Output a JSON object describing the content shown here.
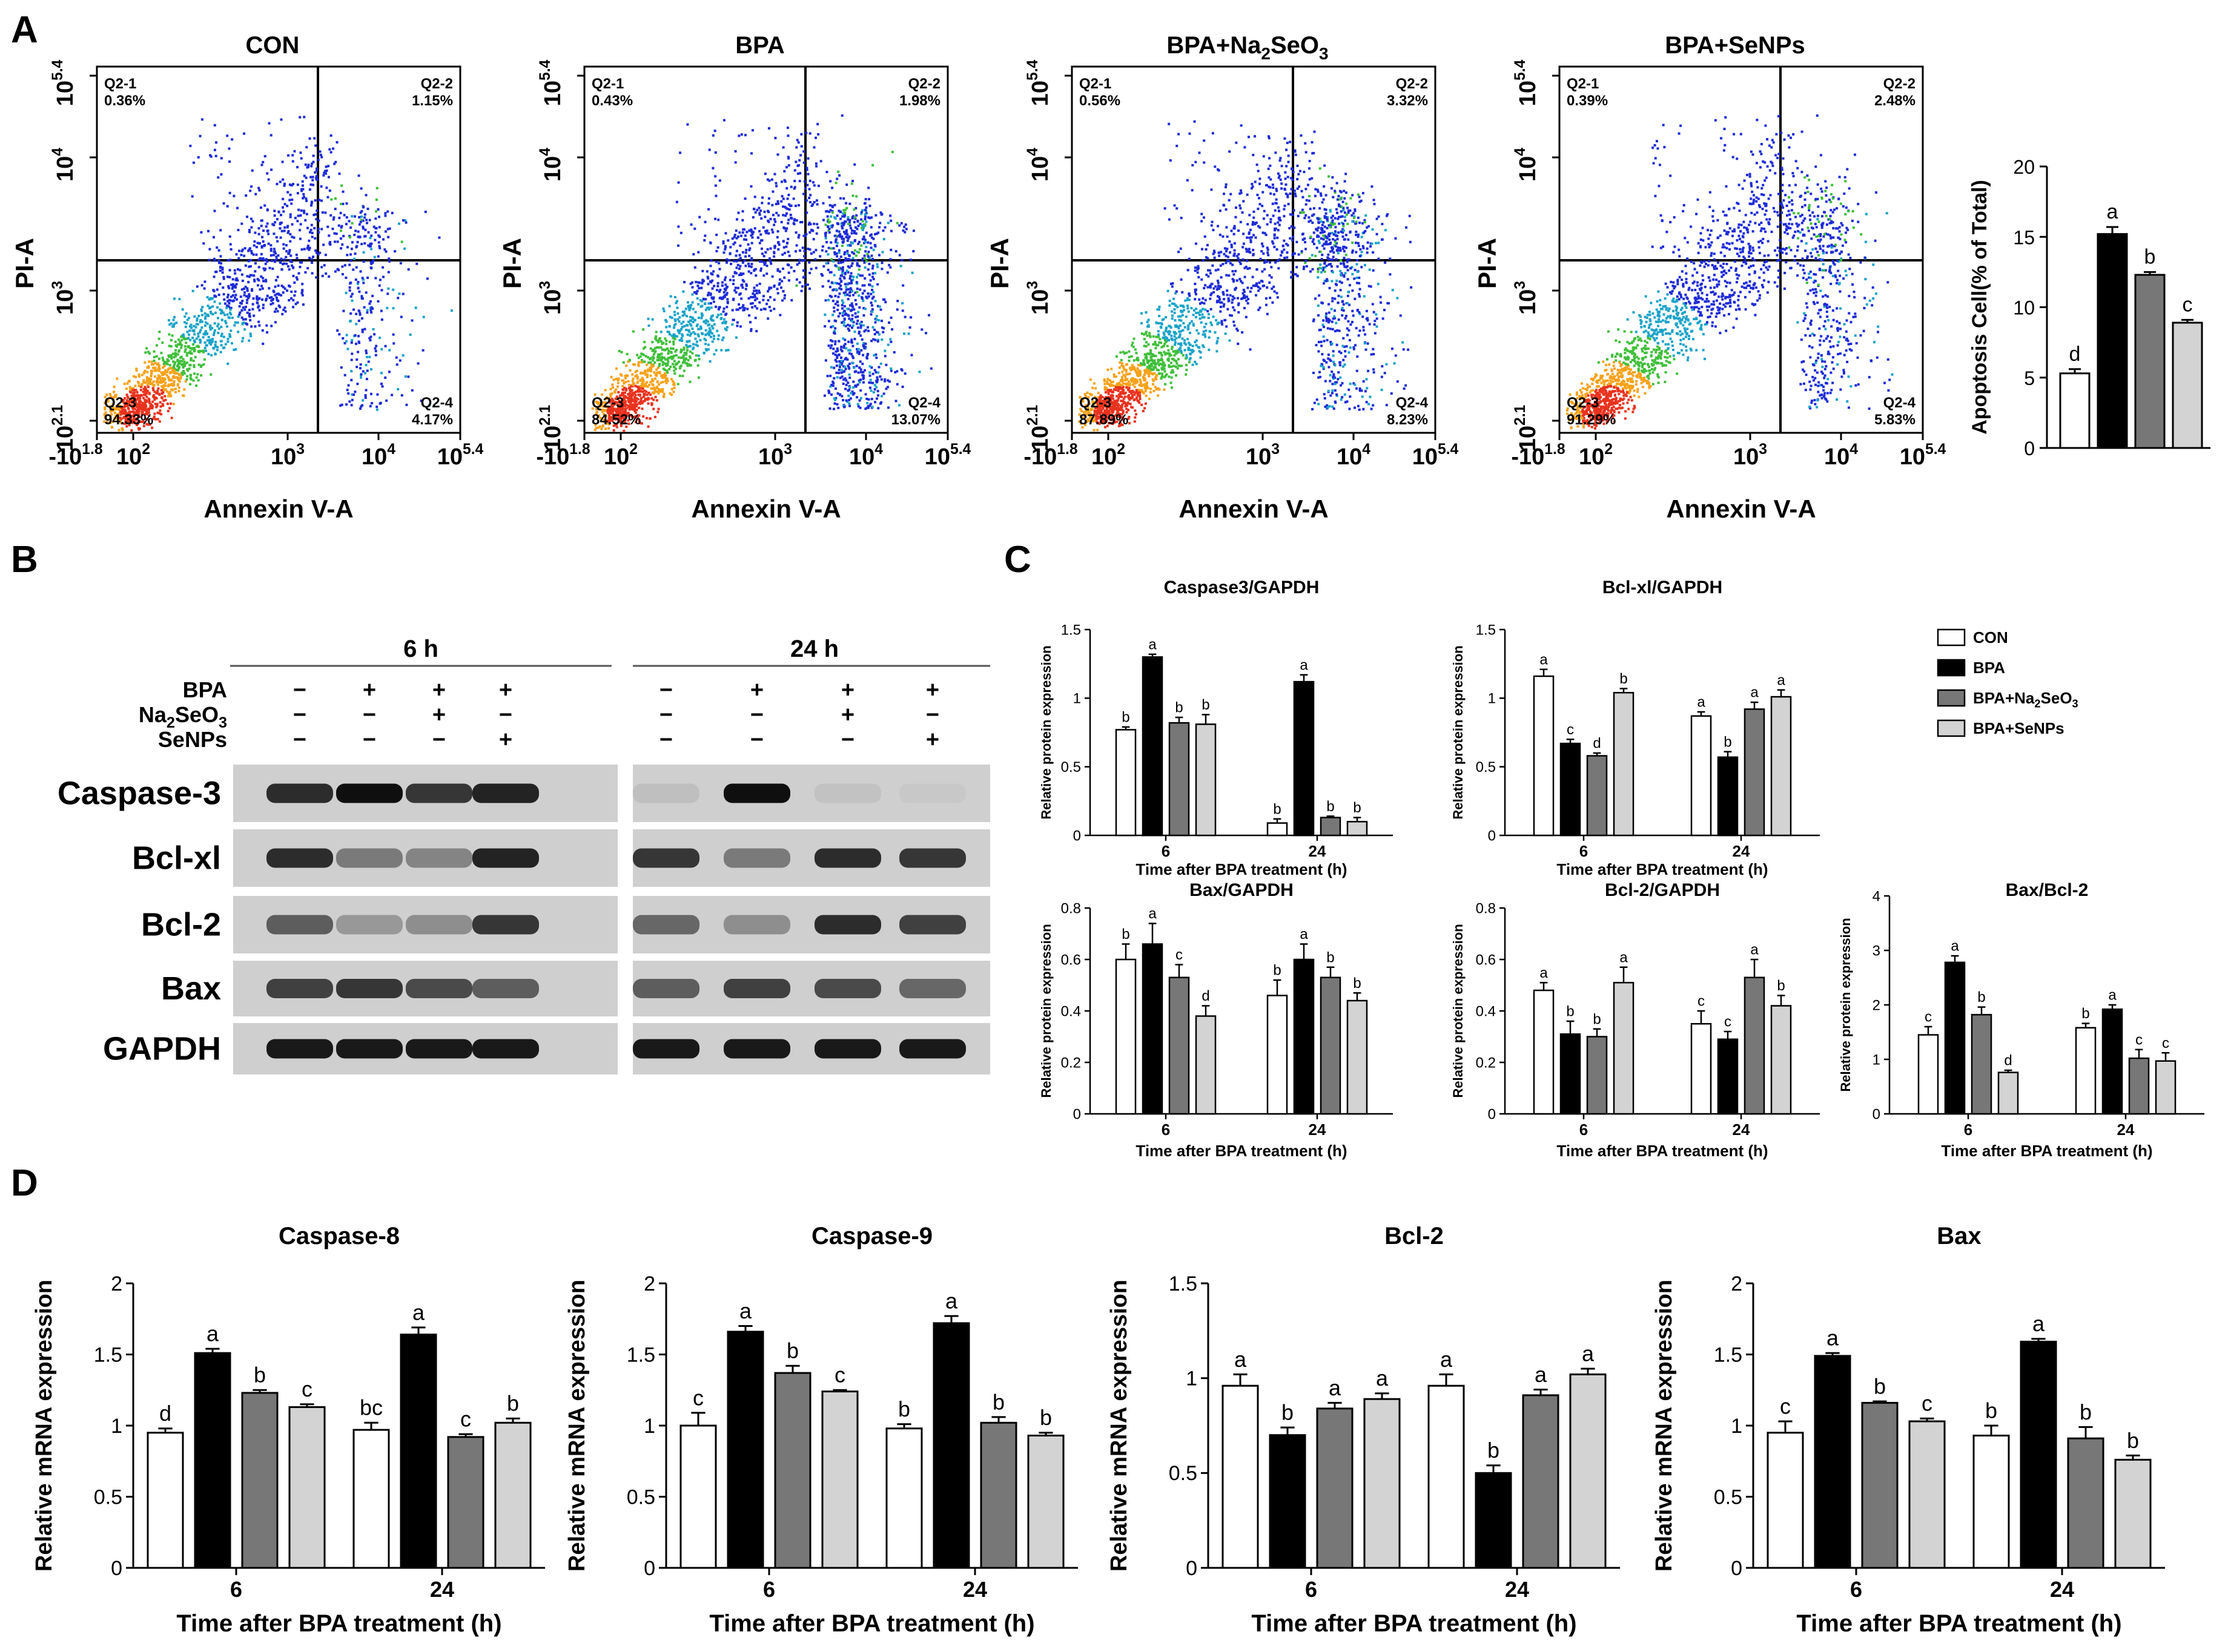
{
  "chart_data": [
    {
      "panel": "A",
      "type": "scatter",
      "title": "CON",
      "xlabel": "Annexin V-A",
      "ylabel": "PI-A",
      "x_ticks": [
        "-10^1.8",
        "10^2",
        "10^3",
        "10^4",
        "10^5.4"
      ],
      "y_ticks": [
        "10^2.1",
        "10^3",
        "10^4",
        "10^5.4"
      ],
      "quadrants": [
        {
          "name": "Q2-1",
          "value": "0.36%"
        },
        {
          "name": "Q2-2",
          "value": "1.15%"
        },
        {
          "name": "Q2-3",
          "value": "94.33%"
        },
        {
          "name": "Q2-4",
          "value": "4.17%"
        }
      ]
    },
    {
      "panel": "A",
      "type": "scatter",
      "title": "BPA",
      "xlabel": "Annexin V-A",
      "ylabel": "PI-A",
      "x_ticks": [
        "-10^1.8",
        "10^2",
        "10^3",
        "10^4",
        "10^5.4"
      ],
      "y_ticks": [
        "10^2.1",
        "10^3",
        "10^4",
        "10^5.4"
      ],
      "quadrants": [
        {
          "name": "Q2-1",
          "value": "0.43%"
        },
        {
          "name": "Q2-2",
          "value": "1.98%"
        },
        {
          "name": "Q2-3",
          "value": "84.52%"
        },
        {
          "name": "Q2-4",
          "value": "13.07%"
        }
      ]
    },
    {
      "panel": "A",
      "type": "scatter",
      "title": "BPA+Na2SeO3",
      "xlabel": "Annexin V-A",
      "ylabel": "PI-A",
      "x_ticks": [
        "-10^1.8",
        "10^2",
        "10^3",
        "10^4",
        "10^5.4"
      ],
      "y_ticks": [
        "10^2.1",
        "10^3",
        "10^4",
        "10^5.4"
      ],
      "quadrants": [
        {
          "name": "Q2-1",
          "value": "0.56%"
        },
        {
          "name": "Q2-2",
          "value": "3.32%"
        },
        {
          "name": "Q2-3",
          "value": "87.89%"
        },
        {
          "name": "Q2-4",
          "value": "8.23%"
        }
      ]
    },
    {
      "panel": "A",
      "type": "scatter",
      "title": "BPA+SeNPs",
      "xlabel": "Annexin V-A",
      "ylabel": "PI-A",
      "x_ticks": [
        "-10^1.8",
        "10^2",
        "10^3",
        "10^4",
        "10^5.4"
      ],
      "y_ticks": [
        "10^2.1",
        "10^3",
        "10^4",
        "10^5.4"
      ],
      "quadrants": [
        {
          "name": "Q2-1",
          "value": "0.39%"
        },
        {
          "name": "Q2-2",
          "value": "2.48%"
        },
        {
          "name": "Q2-3",
          "value": "91.29%"
        },
        {
          "name": "Q2-4",
          "value": "5.83%"
        }
      ]
    },
    {
      "panel": "A",
      "type": "bar",
      "title": "",
      "ylabel": "Apoptosis Cell(% of Total)",
      "ylim": [
        0,
        20
      ],
      "y_ticks": [
        0,
        5,
        10,
        15,
        20
      ],
      "categories": [
        "CON",
        "BPA",
        "BPA+Na2SeO3",
        "BPA+SeNPs"
      ],
      "values": [
        5.3,
        15.2,
        12.3,
        8.9
      ],
      "errors": [
        0.3,
        0.5,
        0.2,
        0.2
      ],
      "letters": [
        "d",
        "a",
        "b",
        "c"
      ]
    },
    {
      "panel": "C",
      "type": "bar",
      "title": "Caspase3/GAPDH",
      "xlabel": "Time after BPA treatment (h)",
      "ylabel": "Relative protein expression",
      "ylim": [
        0,
        1.5
      ],
      "y_ticks": [
        "0",
        "0.5",
        "1",
        "1.5"
      ],
      "categories": [
        "6",
        "24"
      ],
      "series": [
        {
          "name": "CON",
          "values": [
            0.77,
            0.09
          ],
          "errors": [
            0.02,
            0.03
          ],
          "letters": [
            "b",
            "b"
          ]
        },
        {
          "name": "BPA",
          "values": [
            1.3,
            1.12
          ],
          "errors": [
            0.02,
            0.05
          ],
          "letters": [
            "a",
            "a"
          ]
        },
        {
          "name": "BPA+Na2SeO3",
          "values": [
            0.82,
            0.13
          ],
          "errors": [
            0.04,
            0.01
          ],
          "letters": [
            "b",
            "b"
          ]
        },
        {
          "name": "BPA+SeNPs",
          "values": [
            0.81,
            0.1
          ],
          "errors": [
            0.07,
            0.03
          ],
          "letters": [
            "b",
            "b"
          ]
        }
      ]
    },
    {
      "panel": "C",
      "type": "bar",
      "title": "Bcl-xl/GAPDH",
      "xlabel": "Time after BPA treatment (h)",
      "ylabel": "Relative protein expression",
      "ylim": [
        0,
        1.5
      ],
      "y_ticks": [
        "0",
        "0.5",
        "1",
        "1.5"
      ],
      "categories": [
        "6",
        "24"
      ],
      "series": [
        {
          "name": "CON",
          "values": [
            1.16,
            0.87
          ],
          "errors": [
            0.05,
            0.03
          ],
          "letters": [
            "a",
            "a"
          ]
        },
        {
          "name": "BPA",
          "values": [
            0.67,
            0.57
          ],
          "errors": [
            0.03,
            0.04
          ],
          "letters": [
            "c",
            "b"
          ]
        },
        {
          "name": "BPA+Na2SeO3",
          "values": [
            0.58,
            0.92
          ],
          "errors": [
            0.02,
            0.05
          ],
          "letters": [
            "d",
            "a"
          ]
        },
        {
          "name": "BPA+SeNPs",
          "values": [
            1.04,
            1.01
          ],
          "errors": [
            0.03,
            0.05
          ],
          "letters": [
            "b",
            "a"
          ]
        }
      ]
    },
    {
      "panel": "C",
      "type": "bar",
      "title": "Bax/GAPDH",
      "xlabel": "Time after BPA treatment (h)",
      "ylabel": "Relative protein expression",
      "ylim": [
        0,
        0.8
      ],
      "y_ticks": [
        "0",
        "0.2",
        "0.4",
        "0.6",
        "0.8"
      ],
      "categories": [
        "6",
        "24"
      ],
      "series": [
        {
          "name": "CON",
          "values": [
            0.6,
            0.46
          ],
          "errors": [
            0.06,
            0.06
          ],
          "letters": [
            "b",
            "b"
          ]
        },
        {
          "name": "BPA",
          "values": [
            0.66,
            0.6
          ],
          "errors": [
            0.08,
            0.06
          ],
          "letters": [
            "a",
            "a"
          ]
        },
        {
          "name": "BPA+Na2SeO3",
          "values": [
            0.53,
            0.53
          ],
          "errors": [
            0.05,
            0.04
          ],
          "letters": [
            "c",
            "b"
          ]
        },
        {
          "name": "BPA+SeNPs",
          "values": [
            0.38,
            0.44
          ],
          "errors": [
            0.04,
            0.03
          ],
          "letters": [
            "d",
            "b"
          ]
        }
      ]
    },
    {
      "panel": "C",
      "type": "bar",
      "title": "Bcl-2/GAPDH",
      "xlabel": "Time after BPA treatment (h)",
      "ylabel": "Relative protein expression",
      "ylim": [
        0,
        0.8
      ],
      "y_ticks": [
        "0",
        "0.2",
        "0.4",
        "0.6",
        "0.8"
      ],
      "categories": [
        "6",
        "24"
      ],
      "series": [
        {
          "name": "CON",
          "values": [
            0.48,
            0.35
          ],
          "errors": [
            0.03,
            0.05
          ],
          "letters": [
            "a",
            "c"
          ]
        },
        {
          "name": "BPA",
          "values": [
            0.31,
            0.29
          ],
          "errors": [
            0.05,
            0.03
          ],
          "letters": [
            "b",
            "c"
          ]
        },
        {
          "name": "BPA+Na2SeO3",
          "values": [
            0.3,
            0.53
          ],
          "errors": [
            0.03,
            0.07
          ],
          "letters": [
            "b",
            "a"
          ]
        },
        {
          "name": "BPA+SeNPs",
          "values": [
            0.51,
            0.42
          ],
          "errors": [
            0.06,
            0.04
          ],
          "letters": [
            "a",
            "b"
          ]
        }
      ]
    },
    {
      "panel": "C",
      "type": "bar",
      "title": "Bax/Bcl-2",
      "xlabel": "Time after BPA treatment (h)",
      "ylabel": "Relative protein expression",
      "ylim": [
        0,
        4
      ],
      "y_ticks": [
        "0",
        "1",
        "2",
        "3",
        "4"
      ],
      "categories": [
        "6",
        "24"
      ],
      "series": [
        {
          "name": "CON",
          "values": [
            1.45,
            1.58
          ],
          "errors": [
            0.15,
            0.08
          ],
          "letters": [
            "c",
            "b"
          ]
        },
        {
          "name": "BPA",
          "values": [
            2.78,
            1.92
          ],
          "errors": [
            0.12,
            0.08
          ],
          "letters": [
            "a",
            "a"
          ]
        },
        {
          "name": "BPA+Na2SeO3",
          "values": [
            1.82,
            1.02
          ],
          "errors": [
            0.14,
            0.16
          ],
          "letters": [
            "b",
            "c"
          ]
        },
        {
          "name": "BPA+SeNPs",
          "values": [
            0.76,
            0.97
          ],
          "errors": [
            0.04,
            0.15
          ],
          "letters": [
            "d",
            "c"
          ]
        }
      ]
    },
    {
      "panel": "D",
      "type": "bar",
      "title": "Caspase-8",
      "xlabel": "Time after BPA treatment (h)",
      "ylabel": "Relative mRNA expression",
      "ylim": [
        0,
        2
      ],
      "y_ticks": [
        "0",
        "0.5",
        "1",
        "1.5",
        "2"
      ],
      "categories": [
        "6",
        "24"
      ],
      "series": [
        {
          "name": "CON",
          "values": [
            0.95,
            0.97
          ],
          "errors": [
            0.03,
            0.05
          ],
          "letters": [
            "d",
            "bc"
          ]
        },
        {
          "name": "BPA",
          "values": [
            1.51,
            1.64
          ],
          "errors": [
            0.03,
            0.05
          ],
          "letters": [
            "a",
            "a"
          ]
        },
        {
          "name": "BPA+Na2SeO3",
          "values": [
            1.23,
            0.92
          ],
          "errors": [
            0.02,
            0.02
          ],
          "letters": [
            "b",
            "c"
          ]
        },
        {
          "name": "BPA+SeNPs",
          "values": [
            1.13,
            1.02
          ],
          "errors": [
            0.02,
            0.03
          ],
          "letters": [
            "c",
            "b"
          ]
        }
      ]
    },
    {
      "panel": "D",
      "type": "bar",
      "title": "Caspase-9",
      "xlabel": "Time after BPA treatment (h)",
      "ylabel": "Relative mRNA expression",
      "ylim": [
        0,
        2
      ],
      "y_ticks": [
        "0",
        "0.5",
        "1",
        "1.5",
        "2"
      ],
      "categories": [
        "6",
        "24"
      ],
      "series": [
        {
          "name": "CON",
          "values": [
            1.0,
            0.98
          ],
          "errors": [
            0.09,
            0.03
          ],
          "letters": [
            "c",
            "b"
          ]
        },
        {
          "name": "BPA",
          "values": [
            1.66,
            1.72
          ],
          "errors": [
            0.04,
            0.05
          ],
          "letters": [
            "a",
            "a"
          ]
        },
        {
          "name": "BPA+Na2SeO3",
          "values": [
            1.37,
            1.02
          ],
          "errors": [
            0.05,
            0.04
          ],
          "letters": [
            "b",
            "b"
          ]
        },
        {
          "name": "BPA+SeNPs",
          "values": [
            1.24,
            0.93
          ],
          "errors": [
            0.01,
            0.02
          ],
          "letters": [
            "c",
            "b"
          ]
        }
      ]
    },
    {
      "panel": "D",
      "type": "bar",
      "title": "Bcl-2",
      "xlabel": "Time after BPA treatment (h)",
      "ylabel": "Relative mRNA expression",
      "ylim": [
        0,
        1.5
      ],
      "y_ticks": [
        "0",
        "0.5",
        "1",
        "1.5"
      ],
      "categories": [
        "6",
        "24"
      ],
      "series": [
        {
          "name": "CON",
          "values": [
            0.96,
            0.96
          ],
          "errors": [
            0.06,
            0.06
          ],
          "letters": [
            "a",
            "a"
          ]
        },
        {
          "name": "BPA",
          "values": [
            0.7,
            0.5
          ],
          "errors": [
            0.04,
            0.04
          ],
          "letters": [
            "b",
            "b"
          ]
        },
        {
          "name": "BPA+Na2SeO3",
          "values": [
            0.84,
            0.91
          ],
          "errors": [
            0.03,
            0.03
          ],
          "letters": [
            "a",
            "a"
          ]
        },
        {
          "name": "BPA+SeNPs",
          "values": [
            0.89,
            1.02
          ],
          "errors": [
            0.03,
            0.03
          ],
          "letters": [
            "a",
            "a"
          ]
        }
      ]
    },
    {
      "panel": "D",
      "type": "bar",
      "title": "Bax",
      "xlabel": "Time after BPA treatment (h)",
      "ylabel": "Relative mRNA expression",
      "ylim": [
        0,
        2
      ],
      "y_ticks": [
        "0",
        "0.5",
        "1",
        "1.5",
        "2"
      ],
      "categories": [
        "6",
        "24"
      ],
      "series": [
        {
          "name": "CON",
          "values": [
            0.95,
            0.93
          ],
          "errors": [
            0.08,
            0.07
          ],
          "letters": [
            "c",
            "b"
          ]
        },
        {
          "name": "BPA",
          "values": [
            1.49,
            1.59
          ],
          "errors": [
            0.02,
            0.02
          ],
          "letters": [
            "a",
            "a"
          ]
        },
        {
          "name": "BPA+Na2SeO3",
          "values": [
            1.16,
            0.91
          ],
          "errors": [
            0.01,
            0.08
          ],
          "letters": [
            "b",
            "b"
          ]
        },
        {
          "name": "BPA+SeNPs",
          "values": [
            1.03,
            0.76
          ],
          "errors": [
            0.02,
            0.03
          ],
          "letters": [
            "c",
            "b"
          ]
        }
      ]
    }
  ],
  "panel_labels": [
    "A",
    "B",
    "C",
    "D"
  ],
  "legend": {
    "items": [
      {
        "label": "CON",
        "color": "#ffffff"
      },
      {
        "label": "BPA",
        "color": "#000000"
      },
      {
        "label": "BPA+Na2SeO3",
        "color": "#777777"
      },
      {
        "label": "BPA+SeNPs",
        "color": "#d3d3d3"
      }
    ]
  },
  "series_colors": [
    "#ffffff",
    "#000000",
    "#777777",
    "#d3d3d3"
  ],
  "western_blot": {
    "time_groups": [
      "6 h",
      "24 h"
    ],
    "treatment_rows": [
      {
        "label": "BPA",
        "signs": [
          "−",
          "+",
          "+",
          "+",
          "−",
          "+",
          "+",
          "+"
        ]
      },
      {
        "label": "Na2SeO3",
        "signs": [
          "−",
          "−",
          "+",
          "−",
          "−",
          "−",
          "+",
          "−"
        ]
      },
      {
        "label": "SeNPs",
        "signs": [
          "−",
          "−",
          "−",
          "+",
          "−",
          "−",
          "−",
          "+"
        ]
      }
    ],
    "proteins": [
      {
        "label": "Caspase-3",
        "intensity": [
          0.85,
          1.0,
          0.8,
          0.9,
          0.1,
          1.0,
          0.08,
          0.05
        ]
      },
      {
        "label": "Bcl-xl",
        "intensity": [
          0.85,
          0.45,
          0.4,
          0.9,
          0.8,
          0.45,
          0.85,
          0.8
        ]
      },
      {
        "label": "Bcl-2",
        "intensity": [
          0.6,
          0.3,
          0.35,
          0.8,
          0.55,
          0.35,
          0.85,
          0.75
        ]
      },
      {
        "label": "Bax",
        "intensity": [
          0.75,
          0.8,
          0.7,
          0.6,
          0.6,
          0.75,
          0.7,
          0.55
        ]
      },
      {
        "label": "GAPDH",
        "intensity": [
          0.95,
          0.95,
          0.95,
          0.95,
          0.95,
          0.95,
          0.95,
          0.95
        ]
      }
    ]
  }
}
